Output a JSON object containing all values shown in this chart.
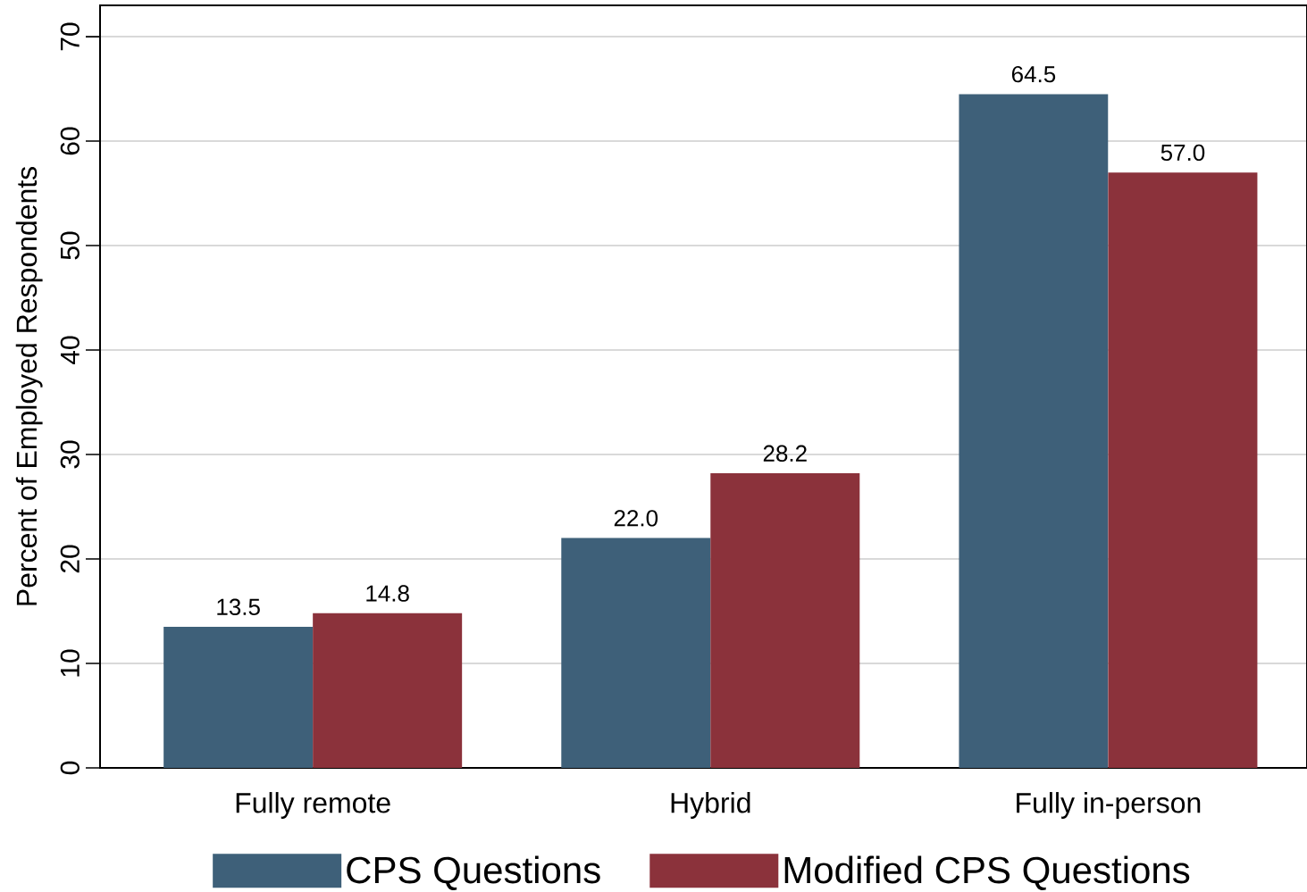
{
  "chart_data": {
    "type": "bar",
    "ylabel": "Percent of Employed Respondents",
    "categories": [
      "Fully remote",
      "Hybrid",
      "Fully in-person"
    ],
    "series": [
      {
        "name": "CPS Questions",
        "color": "#3e6079",
        "values": [
          13.5,
          22.0,
          64.5
        ],
        "value_labels": [
          "13.5",
          "22.0",
          "64.5"
        ]
      },
      {
        "name": "Modified CPS Questions",
        "color": "#8b323b",
        "values": [
          14.8,
          28.2,
          57.0
        ],
        "value_labels": [
          "14.8",
          "28.2",
          "57.0"
        ]
      }
    ],
    "ylim": [
      0,
      73
    ],
    "yticks": [
      0,
      10,
      20,
      30,
      40,
      50,
      60,
      70
    ],
    "grid": "y",
    "legend": "bottom"
  }
}
